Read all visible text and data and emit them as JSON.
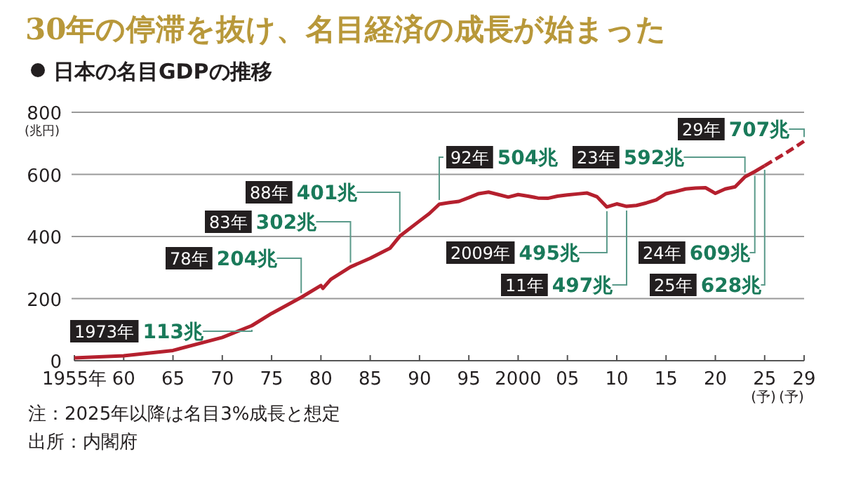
{
  "chart_data": {
    "type": "line",
    "title": "30年の停滞を抜け、名目経済の成長が始まった",
    "subtitle": "日本の名目GDPの推移",
    "ylabel": "(兆円)",
    "grid": "y",
    "xlim": [
      1955,
      2029
    ],
    "xticks": [
      {
        "value": 1955,
        "label": "1955年"
      },
      {
        "value": 1960,
        "label": "60"
      },
      {
        "value": 1965,
        "label": "65"
      },
      {
        "value": 1970,
        "label": "70"
      },
      {
        "value": 1975,
        "label": "75"
      },
      {
        "value": 1980,
        "label": "80"
      },
      {
        "value": 1985,
        "label": "85"
      },
      {
        "value": 1990,
        "label": "90"
      },
      {
        "value": 1995,
        "label": "95"
      },
      {
        "value": 2000,
        "label": "2000"
      },
      {
        "value": 2005,
        "label": "05"
      },
      {
        "value": 2010,
        "label": "10"
      },
      {
        "value": 2015,
        "label": "15"
      },
      {
        "value": 2020,
        "label": "20"
      },
      {
        "value": 2025,
        "label": "25"
      },
      {
        "value": 2029,
        "label": "29"
      }
    ],
    "ylim": [
      0,
      800
    ],
    "yticks": [
      0,
      200,
      400,
      600,
      800
    ],
    "series": [
      {
        "color": "#b5202e",
        "line_style": "solid",
        "x": [
          1955,
          1960,
          1965,
          1970,
          1973,
          1975,
          1978,
          1980,
          1980.2,
          1981,
          1983,
          1985,
          1987,
          1988,
          1990,
          1991,
          1992,
          1993,
          1994,
          1995,
          1996,
          1997,
          1998,
          1999,
          2000,
          2001,
          2002,
          2003,
          2004,
          2005,
          2006,
          2007,
          2008,
          2009,
          2010,
          2011,
          2012,
          2013,
          2014,
          2015,
          2016,
          2017,
          2018,
          2019,
          2020,
          2021,
          2022,
          2023,
          2024,
          2025
        ],
        "values": [
          9,
          16,
          33,
          75,
          113,
          152,
          204,
          242,
          233,
          262,
          302,
          330,
          362,
          401,
          450,
          474,
          504,
          509,
          513,
          525,
          538,
          543,
          535,
          527,
          535,
          530,
          524,
          523,
          530,
          534,
          537,
          540,
          528,
          495,
          505,
          497,
          500,
          508,
          518,
          538,
          545,
          553,
          556,
          557,
          539,
          553,
          560,
          592,
          609,
          628
        ]
      },
      {
        "color": "#b5202e",
        "line_style": "dashed",
        "x": [
          2025,
          2026,
          2027,
          2028,
          2029
        ],
        "values": [
          628,
          647,
          666,
          686,
          707
        ]
      }
    ],
    "annotations": [
      {
        "text": "1973年 113兆",
        "x": 1973,
        "y": 113
      },
      {
        "text": "78年 204兆",
        "x": 1978,
        "y": 204
      },
      {
        "text": "83年 302兆",
        "x": 1983,
        "y": 302
      },
      {
        "text": "88年 401兆",
        "x": 1988,
        "y": 401
      },
      {
        "text": "92年 504兆",
        "x": 1992,
        "y": 504
      },
      {
        "text": "2009年 495兆",
        "x": 2009,
        "y": 495
      },
      {
        "text": "11年 497兆",
        "x": 2011,
        "y": 497
      },
      {
        "text": "23年 592兆",
        "x": 2023,
        "y": 592
      },
      {
        "text": "24年 609兆",
        "x": 2024,
        "y": 609
      },
      {
        "text": "25年 628兆",
        "x": 2025,
        "y": 628
      },
      {
        "text": "29年 707兆",
        "x": 2029,
        "y": 707
      },
      "(予)",
      "(予)",
      "注：2025年以降は名目3%成長と想定",
      "出所：内閣府"
    ]
  }
}
